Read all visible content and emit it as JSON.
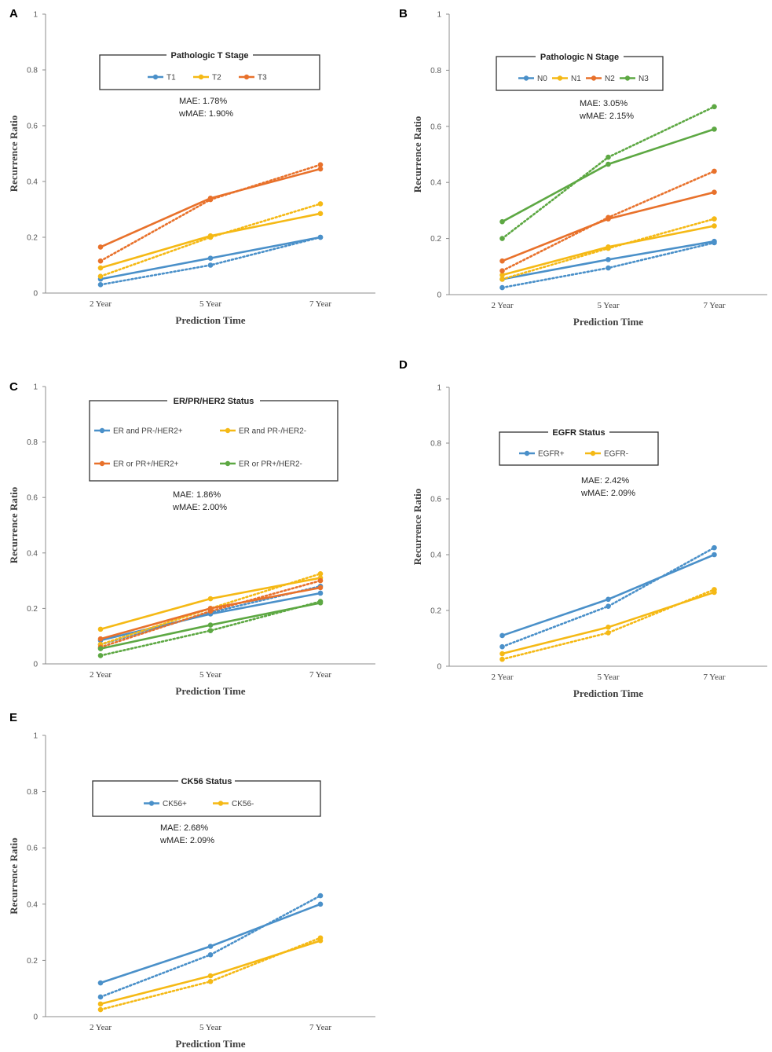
{
  "chart_data": [
    {
      "panel": "A",
      "type": "line",
      "categories": [
        "2 Year",
        "5 Year",
        "7 Year"
      ],
      "xlabel": "Prediction Time",
      "ylabel": "Recurrence Ratio",
      "ylim": [
        0,
        1
      ],
      "yticks": [
        "0",
        "0.2",
        "0.4",
        "0.6",
        "0.8",
        "1"
      ],
      "legend_title": "Pathologic T Stage",
      "metrics": [
        "MAE: 1.78%",
        "wMAE: 1.90%"
      ],
      "series": [
        {
          "name": "T1",
          "color": "#4a90c9",
          "observed": [
            0.05,
            0.125,
            0.2
          ],
          "predicted": [
            0.03,
            0.1,
            0.2
          ]
        },
        {
          "name": "T2",
          "color": "#f5b915",
          "observed": [
            0.09,
            0.205,
            0.285
          ],
          "predicted": [
            0.06,
            0.2,
            0.32
          ]
        },
        {
          "name": "T3",
          "color": "#e8712b",
          "observed": [
            0.165,
            0.34,
            0.445
          ],
          "predicted": [
            0.115,
            0.335,
            0.46
          ]
        }
      ]
    },
    {
      "panel": "B",
      "type": "line",
      "categories": [
        "2 Year",
        "5 Year",
        "7 Year"
      ],
      "xlabel": "Prediction Time",
      "ylabel": "Recurrence Ratio",
      "ylim": [
        0,
        1
      ],
      "yticks": [
        "0",
        "0.2",
        "0.4",
        "0.6",
        "0.8",
        "1"
      ],
      "legend_title": "Pathologic N Stage",
      "metrics": [
        "MAE: 3.05%",
        "wMAE: 2.15%"
      ],
      "series": [
        {
          "name": "N0",
          "color": "#4a90c9",
          "observed": [
            0.055,
            0.125,
            0.19
          ],
          "predicted": [
            0.025,
            0.095,
            0.185
          ]
        },
        {
          "name": "N1",
          "color": "#f5b915",
          "observed": [
            0.07,
            0.17,
            0.245
          ],
          "predicted": [
            0.055,
            0.165,
            0.27
          ]
        },
        {
          "name": "N2",
          "color": "#e8712b",
          "observed": [
            0.12,
            0.27,
            0.365
          ],
          "predicted": [
            0.085,
            0.275,
            0.44
          ]
        },
        {
          "name": "N3",
          "color": "#5da843",
          "observed": [
            0.26,
            0.465,
            0.59
          ],
          "predicted": [
            0.2,
            0.49,
            0.67
          ]
        }
      ]
    },
    {
      "panel": "C",
      "type": "line",
      "categories": [
        "2 Year",
        "5 Year",
        "7 Year"
      ],
      "xlabel": "Prediction Time",
      "ylabel": "Recurrence Ratio",
      "ylim": [
        0,
        1
      ],
      "yticks": [
        "0",
        "0.2",
        "0.4",
        "0.6",
        "0.8",
        "1"
      ],
      "legend_title": "ER/PR/HER2 Status",
      "metrics": [
        "MAE: 1.86%",
        "wMAE: 2.00%"
      ],
      "series": [
        {
          "name": "ER and PR-/HER2+",
          "color": "#4a90c9",
          "observed": [
            0.085,
            0.18,
            0.255
          ],
          "predicted": [
            0.07,
            0.185,
            0.28
          ]
        },
        {
          "name": "ER and PR-/HER2-",
          "color": "#f5b915",
          "observed": [
            0.125,
            0.235,
            0.31
          ],
          "predicted": [
            0.07,
            0.2,
            0.325
          ]
        },
        {
          "name": "ER or PR+/HER2+",
          "color": "#e8712b",
          "observed": [
            0.09,
            0.2,
            0.275
          ],
          "predicted": [
            0.06,
            0.19,
            0.3
          ]
        },
        {
          "name": "ER or PR+/HER2-",
          "color": "#5da843",
          "observed": [
            0.055,
            0.14,
            0.22
          ],
          "predicted": [
            0.03,
            0.12,
            0.225
          ]
        }
      ]
    },
    {
      "panel": "D",
      "type": "line",
      "categories": [
        "2 Year",
        "5 Year",
        "7 Year"
      ],
      "xlabel": "Prediction Time",
      "ylabel": "Recurrence Ratio",
      "ylim": [
        0,
        1
      ],
      "yticks": [
        "0",
        "0.2",
        "0.4",
        "0.6",
        "0.8",
        "1"
      ],
      "legend_title": "EGFR Status",
      "metrics": [
        "MAE: 2.42%",
        "wMAE: 2.09%"
      ],
      "series": [
        {
          "name": "EGFR+",
          "color": "#4a90c9",
          "observed": [
            0.11,
            0.24,
            0.4
          ],
          "predicted": [
            0.07,
            0.215,
            0.425
          ]
        },
        {
          "name": "EGFR-",
          "color": "#f5b915",
          "observed": [
            0.045,
            0.14,
            0.265
          ],
          "predicted": [
            0.025,
            0.12,
            0.275
          ]
        }
      ]
    },
    {
      "panel": "E",
      "type": "line",
      "categories": [
        "2 Year",
        "5 Year",
        "7 Year"
      ],
      "xlabel": "Prediction Time",
      "ylabel": "Recurrence Ratio",
      "ylim": [
        0,
        1
      ],
      "yticks": [
        "0",
        "0.2",
        "0.4",
        "0.6",
        "0.8",
        "1"
      ],
      "legend_title": "CK56 Status",
      "metrics": [
        "MAE: 2.68%",
        "wMAE: 2.09%"
      ],
      "series": [
        {
          "name": "CK56+",
          "color": "#4a90c9",
          "observed": [
            0.12,
            0.25,
            0.4
          ],
          "predicted": [
            0.07,
            0.22,
            0.43
          ]
        },
        {
          "name": "CK56-",
          "color": "#f5b915",
          "observed": [
            0.045,
            0.145,
            0.27
          ],
          "predicted": [
            0.025,
            0.125,
            0.28
          ]
        }
      ]
    }
  ]
}
